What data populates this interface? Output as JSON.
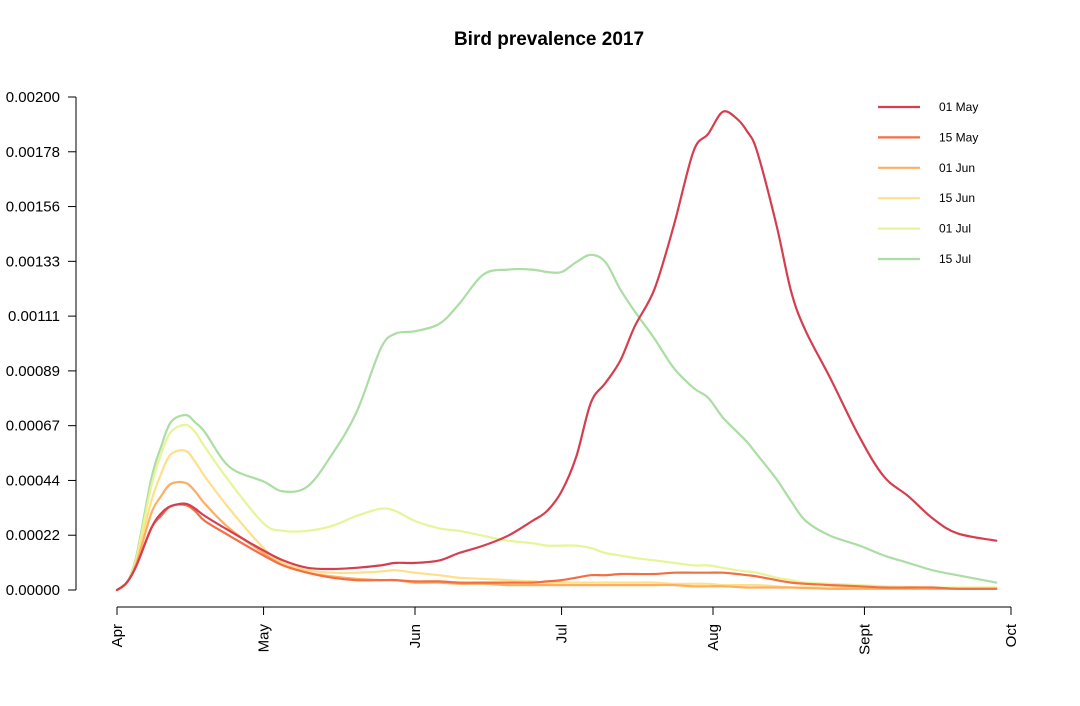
{
  "chart_data": {
    "type": "line",
    "title": "Bird prevalence 2017",
    "xlabel": "",
    "ylabel": "",
    "ylim": [
      0,
      0.002
    ],
    "x_ticks": [
      "Apr",
      "May",
      "Jun",
      "Jul",
      "Aug",
      "Sept",
      "Oct"
    ],
    "x_tick_dates": [
      "2017-04-01",
      "2017-05-01",
      "2017-06-01",
      "2017-07-01",
      "2017-08-01",
      "2017-09-01",
      "2017-10-01"
    ],
    "y_ticks": [
      "0.00000",
      "0.00022",
      "0.00044",
      "0.00067",
      "0.00089",
      "0.00111",
      "0.00133",
      "0.00156",
      "0.00178",
      "0.00200"
    ],
    "grid": false,
    "legend_position": "top-right",
    "x": [
      "2017-04-01",
      "2017-04-03",
      "2017-04-05",
      "2017-04-08",
      "2017-04-10",
      "2017-04-12",
      "2017-04-15",
      "2017-04-17",
      "2017-04-19",
      "2017-04-24",
      "2017-05-01",
      "2017-05-05",
      "2017-05-10",
      "2017-05-15",
      "2017-05-20",
      "2017-05-25",
      "2017-05-28",
      "2017-06-01",
      "2017-06-06",
      "2017-06-10",
      "2017-06-15",
      "2017-06-20",
      "2017-06-25",
      "2017-06-28",
      "2017-07-01",
      "2017-07-04",
      "2017-07-07",
      "2017-07-10",
      "2017-07-13",
      "2017-07-16",
      "2017-07-20",
      "2017-07-24",
      "2017-07-28",
      "2017-07-31",
      "2017-08-03",
      "2017-08-06",
      "2017-08-08",
      "2017-08-10",
      "2017-08-14",
      "2017-08-17",
      "2017-08-20",
      "2017-08-25",
      "2017-08-31",
      "2017-09-05",
      "2017-09-10",
      "2017-09-15",
      "2017-09-20",
      "2017-09-28"
    ],
    "series": [
      {
        "name": "01 May",
        "color": "#d53e4f",
        "values": [
          0,
          3e-05,
          0.0001,
          0.00025,
          0.00031,
          0.00034,
          0.00035,
          0.00033,
          0.0003,
          0.00024,
          0.00016,
          0.00012,
          9e-05,
          8.5e-05,
          9e-05,
          0.0001,
          0.00011,
          0.00011,
          0.00012,
          0.00015,
          0.00018,
          0.00022,
          0.00028,
          0.00032,
          0.0004,
          0.00054,
          0.00076,
          0.00084,
          0.00093,
          0.00107,
          0.00122,
          0.00148,
          0.00178,
          0.00185,
          0.00194,
          0.00191,
          0.00186,
          0.00178,
          0.00148,
          0.00121,
          0.00105,
          0.00086,
          0.00062,
          0.00046,
          0.00038,
          0.00029,
          0.00023,
          0.0002
        ]
      },
      {
        "name": "15 May",
        "color": "#f46d43",
        "values": [
          0,
          3e-05,
          0.0001,
          0.00025,
          0.0003,
          0.00034,
          0.000345,
          0.00032,
          0.00028,
          0.00022,
          0.00014,
          0.0001,
          7e-05,
          5e-05,
          4e-05,
          4e-05,
          4e-05,
          3.5e-05,
          3.5e-05,
          3e-05,
          3e-05,
          3e-05,
          3e-05,
          3.5e-05,
          4e-05,
          5e-05,
          6e-05,
          6e-05,
          6.5e-05,
          6.5e-05,
          6.5e-05,
          7e-05,
          7e-05,
          7e-05,
          7e-05,
          6.5e-05,
          6e-05,
          5.5e-05,
          4e-05,
          3e-05,
          2.5e-05,
          2e-05,
          1.5e-05,
          1e-05,
          1e-05,
          1e-05,
          5e-06,
          5e-06
        ]
      },
      {
        "name": "01 Jun",
        "color": "#fdae61",
        "values": [
          0,
          3e-05,
          0.00011,
          0.00031,
          0.00038,
          0.00043,
          0.000435,
          0.0004,
          0.00035,
          0.00025,
          0.00015,
          0.0001,
          7e-05,
          5.5e-05,
          4.5e-05,
          4e-05,
          4e-05,
          3e-05,
          3e-05,
          2.5e-05,
          2.5e-05,
          2e-05,
          2e-05,
          2e-05,
          2e-05,
          2e-05,
          2e-05,
          2e-05,
          2e-05,
          2e-05,
          2e-05,
          2e-05,
          1.5e-05,
          1.5e-05,
          1.5e-05,
          1.2e-05,
          1e-05,
          1e-05,
          1e-05,
          1e-05,
          8e-06,
          5e-06,
          5e-06,
          5e-06,
          5e-06,
          5e-06,
          5e-06,
          5e-06
        ]
      },
      {
        "name": "15 Jun",
        "color": "#fee08b",
        "values": [
          0,
          3e-05,
          0.00012,
          0.00036,
          0.00047,
          0.00055,
          0.000565,
          0.00052,
          0.00046,
          0.00033,
          0.00017,
          0.00011,
          8e-05,
          7e-05,
          7e-05,
          7.5e-05,
          8e-05,
          7e-05,
          6e-05,
          5e-05,
          4.5e-05,
          4e-05,
          3.5e-05,
          3e-05,
          3e-05,
          3e-05,
          3e-05,
          3e-05,
          3e-05,
          3e-05,
          3e-05,
          2.5e-05,
          2.5e-05,
          2.5e-05,
          2e-05,
          2e-05,
          2e-05,
          2e-05,
          1.5e-05,
          1e-05,
          1e-05,
          1e-05,
          1e-05,
          5e-06,
          5e-06,
          5e-06,
          5e-06,
          5e-06
        ]
      },
      {
        "name": "01 Jul",
        "color": "#e6f598",
        "values": [
          0,
          3e-05,
          0.00013,
          0.00042,
          0.00055,
          0.00064,
          0.00067,
          0.00064,
          0.00058,
          0.00044,
          0.00027,
          0.00024,
          0.00024,
          0.00026,
          0.0003,
          0.00033,
          0.00032,
          0.00028,
          0.00025,
          0.00024,
          0.00022,
          0.0002,
          0.00019,
          0.00018,
          0.00018,
          0.00018,
          0.00017,
          0.00015,
          0.00014,
          0.00013,
          0.00012,
          0.00011,
          0.0001,
          0.0001,
          9e-05,
          8e-05,
          7.5e-05,
          7e-05,
          5e-05,
          4e-05,
          3e-05,
          2.5e-05,
          2e-05,
          1.5e-05,
          1.2e-05,
          1e-05,
          1e-05,
          1e-05
        ]
      },
      {
        "name": "15 Jul",
        "color": "#abdda4",
        "values": [
          0,
          3e-05,
          0.00014,
          0.00045,
          0.00058,
          0.00068,
          0.00071,
          0.00068,
          0.00064,
          0.0005,
          0.00044,
          0.0004,
          0.00042,
          0.00055,
          0.00072,
          0.00098,
          0.00104,
          0.00105,
          0.00108,
          0.00116,
          0.00128,
          0.0013,
          0.0013,
          0.00129,
          0.00129,
          0.00133,
          0.00136,
          0.00133,
          0.00122,
          0.00113,
          0.00102,
          0.0009,
          0.00082,
          0.00078,
          0.0007,
          0.00064,
          0.0006,
          0.00055,
          0.00045,
          0.00036,
          0.00028,
          0.00022,
          0.00018,
          0.00014,
          0.00011,
          8e-05,
          6e-05,
          3e-05
        ]
      }
    ]
  }
}
